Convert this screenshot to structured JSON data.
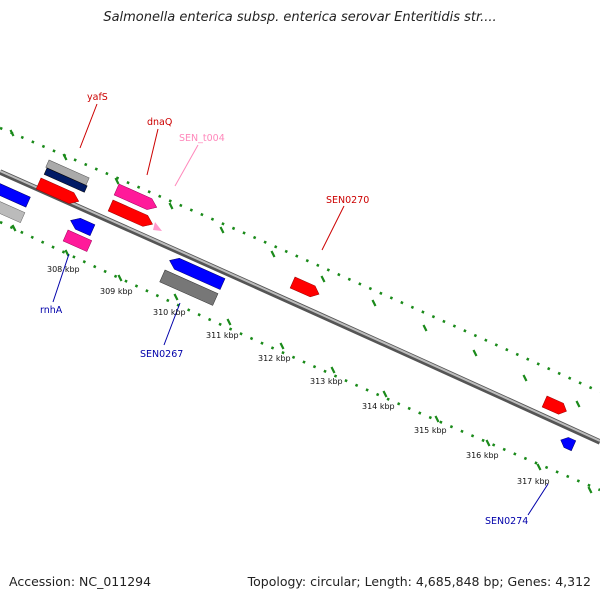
{
  "title": "Salmonella enterica subsp. enterica serovar Enteritidis str....",
  "footer": {
    "accession": "Accession: NC_011294",
    "summary": "Topology: circular; Length: 4,685,848 bp; Genes: 4,312"
  },
  "colors": {
    "forward_gene": "#ff0000",
    "reverse_gene": "#0000ff",
    "rna_gene": "#ff3399",
    "other_feature": "#888888",
    "tick": "#1a8a1a",
    "backbone": "#888888"
  },
  "tick_labels": [
    "308 kbp",
    "309 kbp",
    "310 kbp",
    "311 kbp",
    "312 kbp",
    "313 kbp",
    "314 kbp",
    "315 kbp",
    "316 kbp",
    "317 kbp"
  ],
  "gene_labels": [
    {
      "text": "yafS",
      "color": "#cc0000"
    },
    {
      "text": "dnaQ",
      "color": "#cc0000"
    },
    {
      "text": "SEN_t004",
      "color": "#ff88bb"
    },
    {
      "text": "SEN0270",
      "color": "#cc0000"
    },
    {
      "text": "rnhA",
      "color": "#0000aa"
    },
    {
      "text": "SEN0267",
      "color": "#0000aa"
    },
    {
      "text": "SEN0274",
      "color": "#0000aa"
    }
  ]
}
